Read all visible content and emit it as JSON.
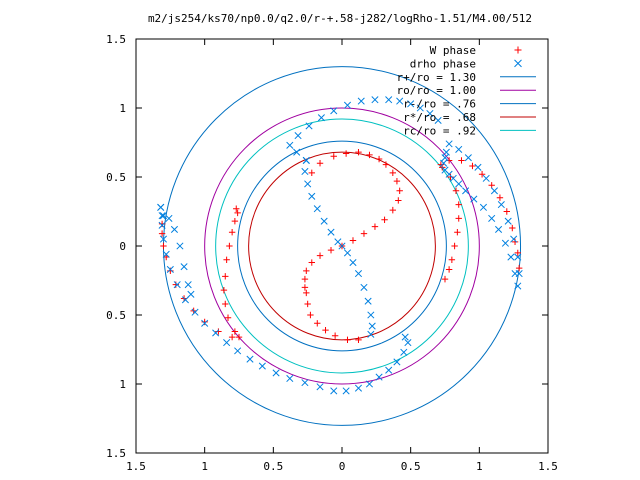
{
  "chart_data": {
    "type": "scatter",
    "title": "m2/js254/ks70/np0.0/q2.0/r-+.58-j282/logRho-1.51/M4.00/512",
    "xlabel": "",
    "ylabel": "",
    "xlim": [
      -1.5,
      1.5
    ],
    "ylim": [
      -1.5,
      1.5
    ],
    "xticks": [
      -1.5,
      -1,
      -0.5,
      0,
      0.5,
      1,
      1.5
    ],
    "yticks": [
      -1.5,
      -1,
      -0.5,
      0,
      0.5,
      1,
      1.5
    ],
    "xtick_labels": [
      "1.5",
      "1",
      "0.5",
      "0",
      "0.5",
      "1",
      "1.5"
    ],
    "ytick_labels": [
      "1.5",
      "1",
      "0.5",
      "0",
      "0.5",
      "1",
      "1.5"
    ],
    "grid": false,
    "legend_position": "top-right",
    "series": [
      {
        "name": "W phase",
        "marker": "plus",
        "color": "#ff0000",
        "points": [
          [
            -0.26,
            -0.34
          ],
          [
            -0.27,
            -0.3
          ],
          [
            -0.27,
            -0.24
          ],
          [
            -0.26,
            -0.18
          ],
          [
            -0.22,
            -0.12
          ],
          [
            -0.16,
            -0.07
          ],
          [
            -0.08,
            -0.03
          ],
          [
            0.0,
            0.0
          ],
          [
            0.08,
            0.04
          ],
          [
            0.16,
            0.09
          ],
          [
            0.24,
            0.14
          ],
          [
            0.31,
            0.19
          ],
          [
            0.37,
            0.26
          ],
          [
            0.41,
            0.33
          ],
          [
            0.42,
            0.4
          ],
          [
            0.4,
            0.47
          ],
          [
            0.37,
            0.53
          ],
          [
            0.32,
            0.59
          ],
          [
            0.27,
            0.63
          ],
          [
            0.2,
            0.66
          ],
          [
            0.12,
            0.68
          ],
          [
            0.03,
            0.67
          ],
          [
            -0.06,
            0.65
          ],
          [
            -0.16,
            0.6
          ],
          [
            -0.22,
            0.53
          ],
          [
            -0.25,
            -0.42
          ],
          [
            -0.23,
            -0.5
          ],
          [
            -0.18,
            -0.56
          ],
          [
            -0.12,
            -0.61
          ],
          [
            -0.05,
            -0.65
          ],
          [
            0.04,
            -0.68
          ],
          [
            0.12,
            -0.68
          ],
          [
            -0.77,
            0.27
          ],
          [
            -0.76,
            0.24
          ],
          [
            -0.78,
            0.18
          ],
          [
            -0.8,
            0.1
          ],
          [
            -0.82,
            0.0
          ],
          [
            -0.84,
            -0.1
          ],
          [
            -0.85,
            -0.22
          ],
          [
            -0.86,
            -0.32
          ],
          [
            -0.85,
            -0.42
          ],
          [
            -0.83,
            -0.52
          ],
          [
            -0.78,
            -0.62
          ],
          [
            -0.75,
            -0.66
          ],
          [
            -0.8,
            -0.66
          ],
          [
            -0.9,
            -0.62
          ],
          [
            -1.0,
            -0.55
          ],
          [
            -1.08,
            -0.47
          ],
          [
            -1.15,
            -0.38
          ],
          [
            -1.21,
            -0.28
          ],
          [
            -1.25,
            -0.18
          ],
          [
            -1.28,
            -0.08
          ],
          [
            -1.3,
            0.0
          ],
          [
            -1.31,
            0.09
          ],
          [
            -1.31,
            0.16
          ],
          [
            0.73,
            0.57
          ],
          [
            0.72,
            0.59
          ],
          [
            0.78,
            0.62
          ],
          [
            0.87,
            0.62
          ],
          [
            0.95,
            0.58
          ],
          [
            1.02,
            0.52
          ],
          [
            1.09,
            0.44
          ],
          [
            1.15,
            0.35
          ],
          [
            1.2,
            0.25
          ],
          [
            1.24,
            0.13
          ],
          [
            1.26,
            0.03
          ],
          [
            1.28,
            -0.05
          ],
          [
            1.29,
            -0.16
          ],
          [
            0.79,
            0.5
          ],
          [
            0.83,
            0.4
          ],
          [
            0.85,
            0.3
          ],
          [
            0.85,
            0.2
          ],
          [
            0.84,
            0.1
          ],
          [
            0.82,
            0.0
          ],
          [
            0.8,
            -0.1
          ],
          [
            0.78,
            -0.17
          ],
          [
            0.75,
            -0.24
          ]
        ]
      },
      {
        "name": "drho phase",
        "marker": "cross",
        "color": "#0080e0",
        "points": [
          [
            -0.26,
            0.62
          ],
          [
            -0.27,
            0.54
          ],
          [
            -0.25,
            0.45
          ],
          [
            -0.22,
            0.36
          ],
          [
            -0.18,
            0.27
          ],
          [
            -0.13,
            0.18
          ],
          [
            -0.08,
            0.1
          ],
          [
            -0.03,
            0.03
          ],
          [
            0.0,
            0.0
          ],
          [
            0.04,
            -0.05
          ],
          [
            0.08,
            -0.12
          ],
          [
            0.12,
            -0.2
          ],
          [
            0.16,
            -0.3
          ],
          [
            0.19,
            -0.4
          ],
          [
            0.21,
            -0.5
          ],
          [
            0.22,
            -0.58
          ],
          [
            0.21,
            -0.64
          ],
          [
            -0.26,
            0.62
          ],
          [
            -0.33,
            0.68
          ],
          [
            -0.38,
            0.73
          ],
          [
            -0.32,
            0.8
          ],
          [
            -0.24,
            0.87
          ],
          [
            -0.15,
            0.93
          ],
          [
            -0.06,
            0.98
          ],
          [
            0.04,
            1.02
          ],
          [
            0.14,
            1.05
          ],
          [
            0.24,
            1.06
          ],
          [
            0.34,
            1.06
          ],
          [
            0.42,
            1.05
          ],
          [
            0.5,
            1.03
          ],
          [
            0.57,
            1.0
          ],
          [
            0.64,
            0.96
          ],
          [
            0.7,
            0.91
          ],
          [
            -1.32,
            0.28
          ],
          [
            -1.31,
            0.22
          ],
          [
            -1.31,
            0.15
          ],
          [
            -1.3,
            0.05
          ],
          [
            -1.28,
            -0.06
          ],
          [
            -1.25,
            -0.17
          ],
          [
            -1.2,
            -0.28
          ],
          [
            -1.14,
            -0.39
          ],
          [
            -1.07,
            -0.48
          ],
          [
            -1.0,
            -0.56
          ],
          [
            -0.92,
            -0.63
          ],
          [
            -0.84,
            -0.7
          ],
          [
            -0.76,
            -0.76
          ],
          [
            -0.67,
            -0.82
          ],
          [
            -0.58,
            -0.87
          ],
          [
            -0.48,
            -0.92
          ],
          [
            -0.38,
            -0.96
          ],
          [
            -0.27,
            -0.99
          ],
          [
            -0.16,
            -1.02
          ],
          [
            -0.06,
            -1.05
          ],
          [
            0.03,
            -1.05
          ],
          [
            0.12,
            -1.03
          ],
          [
            0.2,
            -1.0
          ],
          [
            0.27,
            -0.95
          ],
          [
            0.34,
            -0.9
          ],
          [
            0.4,
            -0.84
          ],
          [
            0.45,
            -0.77
          ],
          [
            0.48,
            -0.7
          ],
          [
            0.46,
            -0.66
          ],
          [
            0.78,
            0.74
          ],
          [
            0.85,
            0.7
          ],
          [
            0.92,
            0.64
          ],
          [
            0.99,
            0.57
          ],
          [
            1.05,
            0.49
          ],
          [
            1.11,
            0.4
          ],
          [
            1.16,
            0.3
          ],
          [
            1.21,
            0.18
          ],
          [
            1.25,
            0.05
          ],
          [
            1.28,
            -0.08
          ],
          [
            1.29,
            -0.2
          ],
          [
            1.28,
            -0.29
          ],
          [
            1.26,
            -0.2
          ],
          [
            1.23,
            -0.08
          ],
          [
            1.19,
            0.02
          ],
          [
            1.14,
            0.12
          ],
          [
            1.09,
            0.2
          ],
          [
            1.03,
            0.28
          ],
          [
            0.96,
            0.34
          ],
          [
            0.9,
            0.4
          ],
          [
            0.85,
            0.45
          ],
          [
            0.81,
            0.49
          ],
          [
            0.78,
            0.52
          ],
          [
            0.75,
            0.55
          ],
          [
            0.74,
            0.6
          ],
          [
            0.75,
            0.64
          ],
          [
            0.76,
            0.68
          ],
          [
            -1.32,
            0.28
          ],
          [
            -1.3,
            0.22
          ],
          [
            -1.26,
            0.2
          ],
          [
            -1.22,
            0.12
          ],
          [
            -1.18,
            0.0
          ],
          [
            -1.15,
            -0.15
          ],
          [
            -1.12,
            -0.28
          ],
          [
            -1.1,
            -0.35
          ]
        ]
      }
    ],
    "circles": [
      {
        "name": "r+/ro = 1.30",
        "radius": 1.3,
        "color": "#0070c0"
      },
      {
        "name": "ro/ro = 1.00",
        "radius": 1.0,
        "color": "#a000a0"
      },
      {
        "name": "r-/ro = .76",
        "radius": 0.76,
        "color": "#0070c0"
      },
      {
        "name": "r*/ro = .68",
        "radius": 0.68,
        "color": "#c00000"
      },
      {
        "name": "rc/ro = .92",
        "radius": 0.92,
        "color": "#00c0c0"
      }
    ],
    "legend": {
      "entries": [
        "W phase",
        "drho phase",
        "r+/ro = 1.30",
        "ro/ro = 1.00",
        "r-/ro = .76",
        "r*/ro = .68",
        "rc/ro = .92"
      ]
    }
  }
}
